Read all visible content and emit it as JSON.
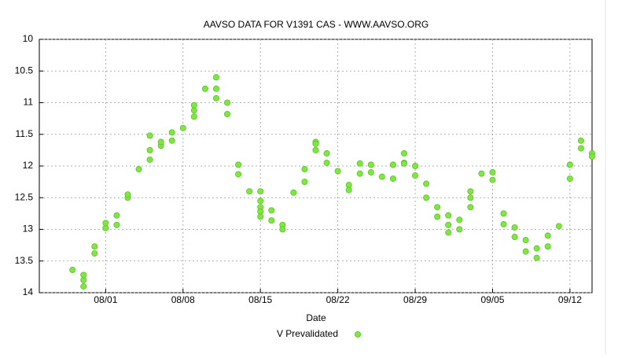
{
  "chart_data": {
    "type": "scatter",
    "title": "AAVSO DATA FOR V1391 CAS - WWW.AAVSO.ORG",
    "x_label": "Date",
    "xlim": [
      "07/26",
      "09/14"
    ],
    "xticks": [
      "08/01",
      "08/08",
      "08/15",
      "08/22",
      "08/29",
      "09/05",
      "09/12"
    ],
    "ylim": [
      10,
      14
    ],
    "y_inverted": true,
    "yticks": [
      10,
      10.5,
      11,
      11.5,
      12,
      12.5,
      13,
      13.5,
      14
    ],
    "grid": true,
    "series": [
      {
        "name": "V Prevalidated",
        "color": "#7ee840",
        "x": [
          "07/29",
          "07/30",
          "07/30",
          "07/30",
          "07/31",
          "07/31",
          "08/01",
          "08/01",
          "08/02",
          "08/02",
          "08/03",
          "08/03",
          "08/04",
          "08/05",
          "08/05",
          "08/05",
          "08/06",
          "08/06",
          "08/07",
          "08/07",
          "08/08",
          "08/09",
          "08/09",
          "08/09",
          "08/10",
          "08/11",
          "08/11",
          "08/11",
          "08/12",
          "08/12",
          "08/13",
          "08/13",
          "08/14",
          "08/15",
          "08/15",
          "08/15",
          "08/15",
          "08/15",
          "08/16",
          "08/16",
          "08/17",
          "08/17",
          "08/18",
          "08/19",
          "08/19",
          "08/20",
          "08/20",
          "08/20",
          "08/21",
          "08/21",
          "08/22",
          "08/23",
          "08/23",
          "08/24",
          "08/24",
          "08/25",
          "08/25",
          "08/26",
          "08/27",
          "08/27",
          "08/28",
          "08/28",
          "08/28",
          "08/29",
          "08/29",
          "08/30",
          "08/30",
          "08/31",
          "08/31",
          "09/01",
          "09/01",
          "09/01",
          "09/02",
          "09/02",
          "09/03",
          "09/03",
          "09/03",
          "09/04",
          "09/05",
          "09/05",
          "09/06",
          "09/06",
          "09/07",
          "09/07",
          "09/08",
          "09/08",
          "09/09",
          "09/09",
          "09/10",
          "09/10",
          "09/11",
          "09/12",
          "09/12",
          "09/13",
          "09/13",
          "09/14",
          "09/14"
        ],
        "values": [
          13.64,
          13.9,
          13.8,
          13.72,
          13.38,
          13.27,
          12.98,
          12.9,
          12.93,
          12.78,
          12.5,
          12.45,
          12.05,
          11.9,
          11.75,
          11.52,
          11.68,
          11.62,
          11.6,
          11.47,
          11.4,
          11.22,
          11.12,
          11.04,
          10.78,
          10.6,
          10.78,
          10.93,
          11.18,
          11.0,
          11.98,
          12.13,
          12.4,
          12.55,
          12.65,
          12.72,
          12.8,
          12.4,
          12.7,
          12.86,
          12.93,
          13.0,
          12.42,
          12.25,
          12.05,
          11.62,
          11.65,
          11.75,
          11.8,
          11.95,
          12.08,
          12.3,
          12.38,
          12.12,
          11.96,
          11.98,
          12.1,
          12.17,
          11.98,
          12.2,
          11.95,
          11.8,
          11.96,
          12.0,
          12.15,
          12.28,
          12.5,
          12.65,
          12.8,
          12.78,
          12.93,
          13.05,
          12.85,
          13.0,
          12.5,
          12.65,
          12.4,
          12.12,
          12.1,
          12.22,
          12.75,
          12.92,
          12.97,
          13.12,
          13.17,
          13.35,
          13.3,
          13.45,
          13.27,
          13.1,
          12.95,
          12.2,
          11.98,
          11.72,
          11.6,
          11.8,
          11.85
        ]
      }
    ]
  }
}
